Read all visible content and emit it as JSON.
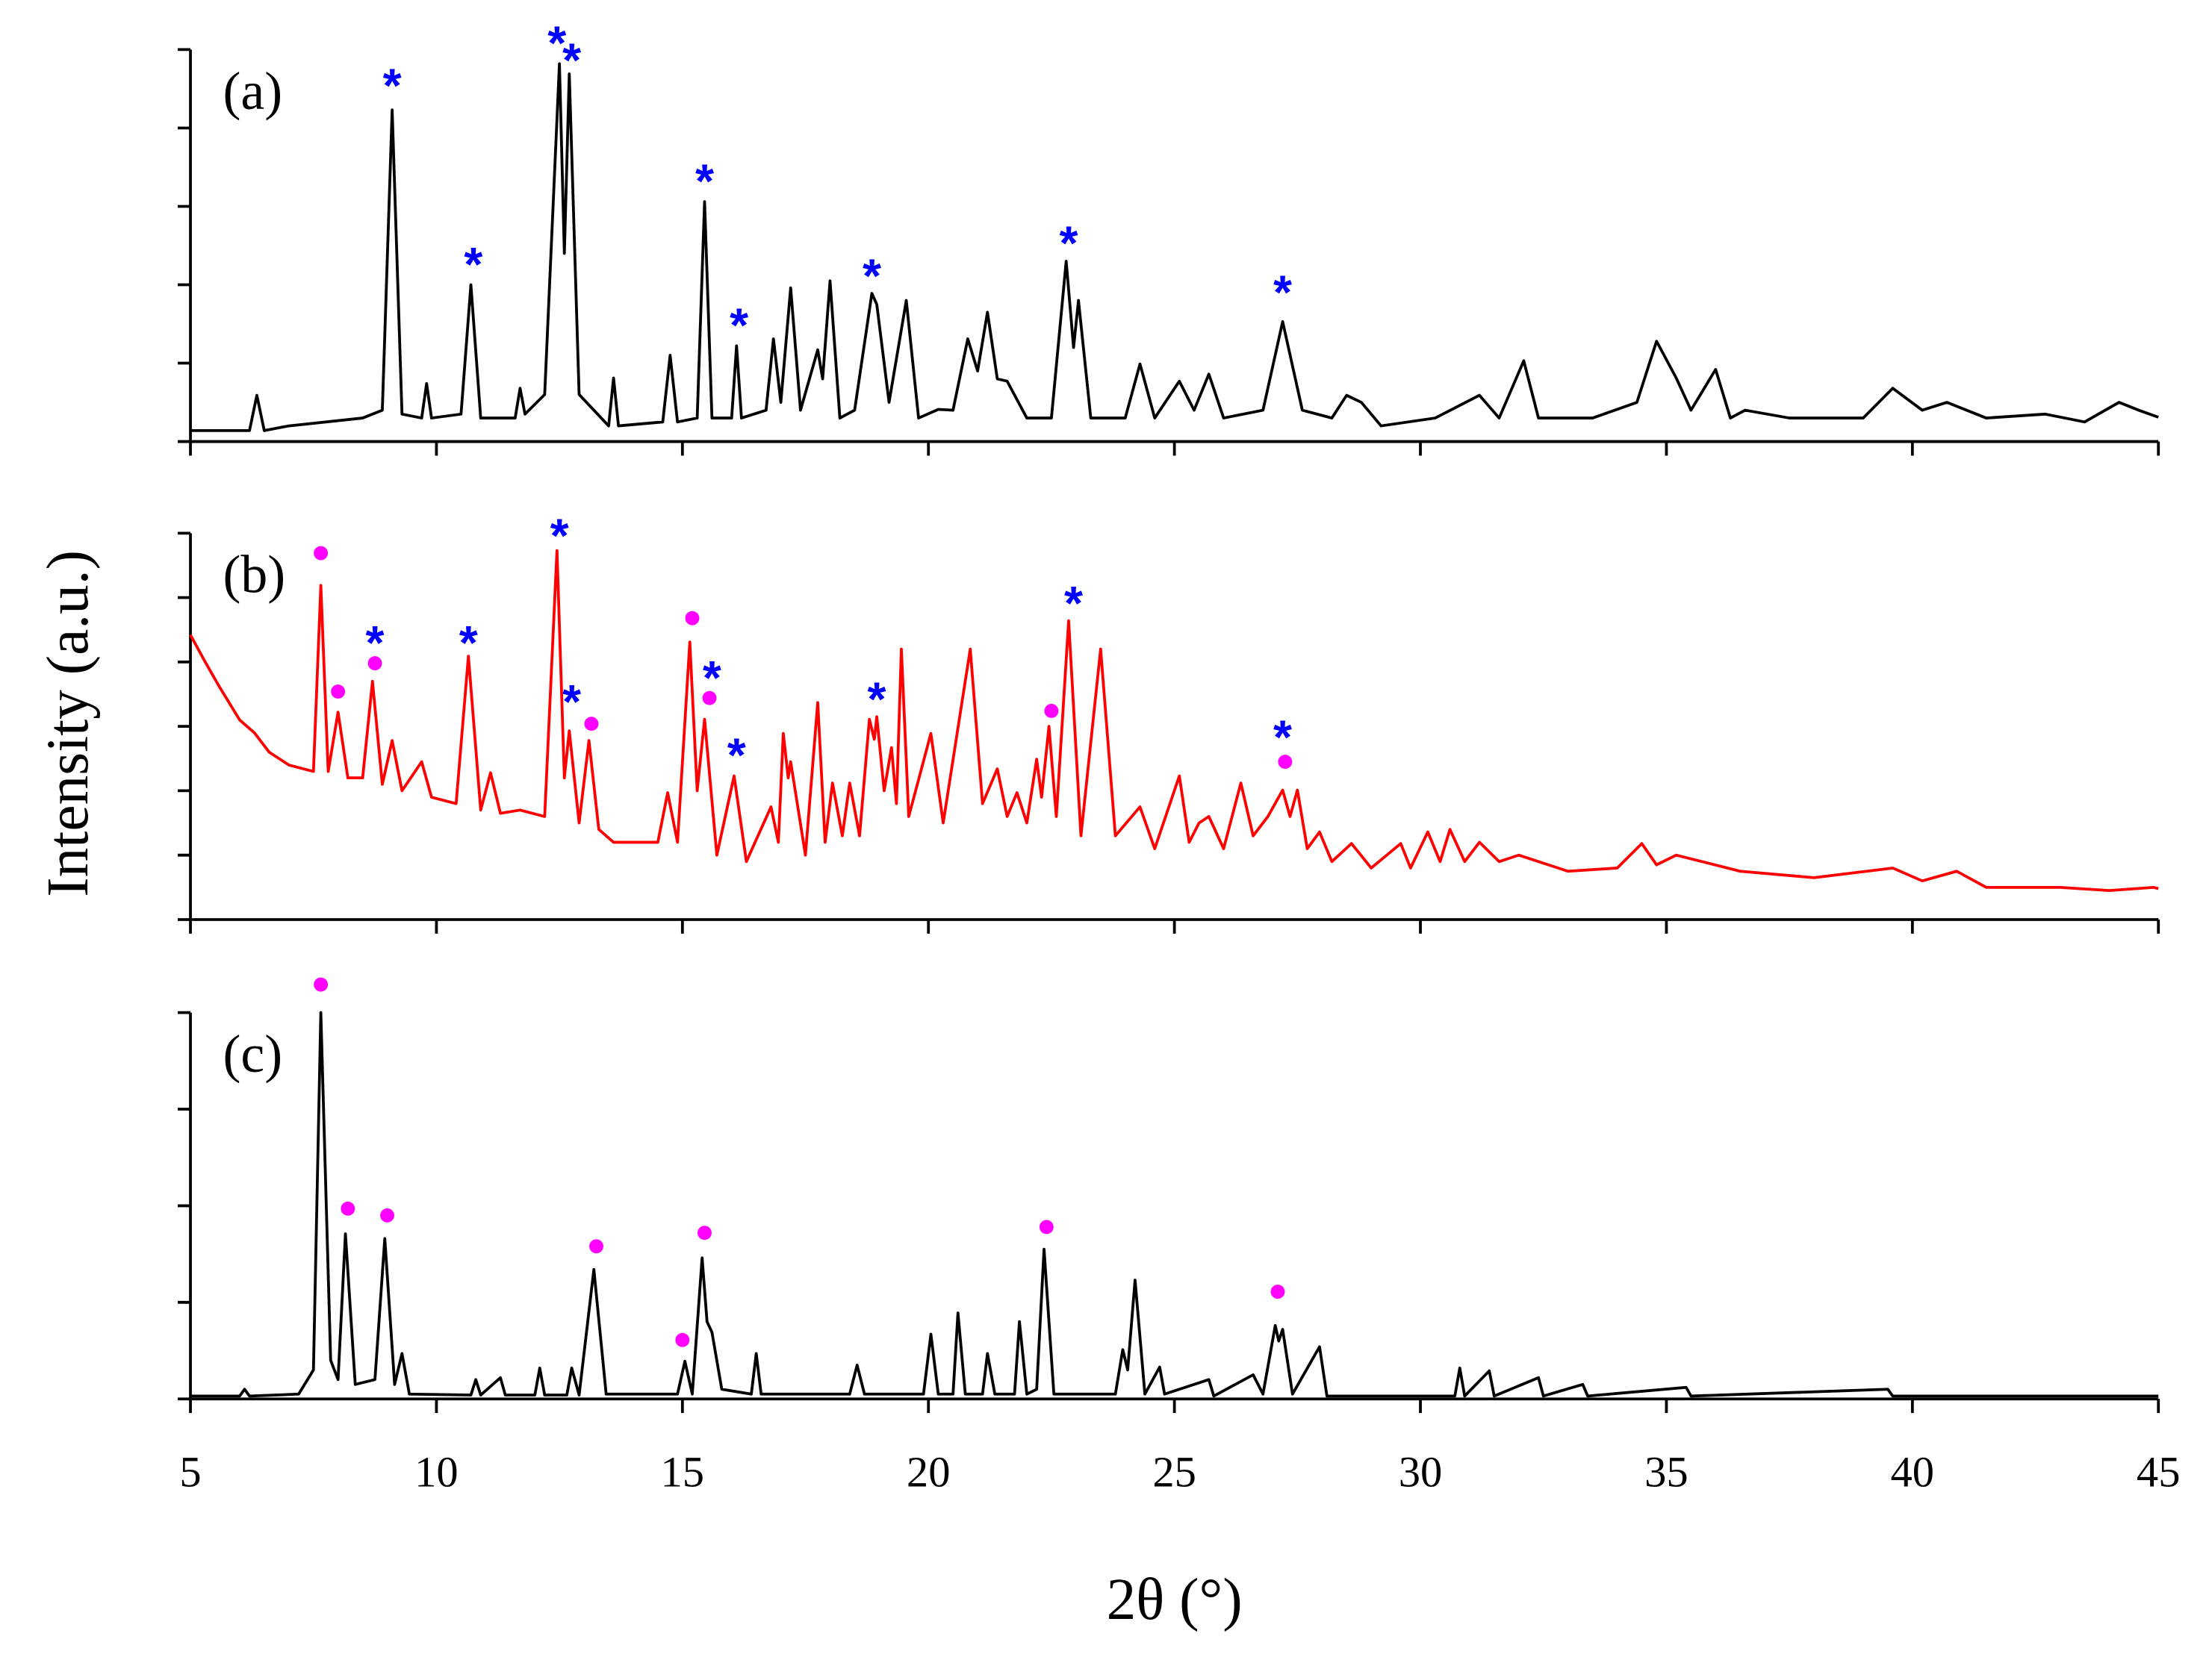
{
  "chart_data": [
    {
      "type": "line",
      "label": "(a)",
      "xlim": [
        5,
        45
      ],
      "ylim": [
        0,
        5
      ],
      "yticks": [
        0,
        1,
        2,
        3,
        4,
        5
      ],
      "x": [
        5.0,
        6.2,
        6.35,
        6.5,
        7.0,
        8.5,
        8.9,
        9.1,
        9.3,
        9.7,
        9.8,
        9.9,
        10.5,
        10.7,
        10.9,
        11.6,
        11.7,
        11.8,
        12.2,
        12.5,
        12.6,
        12.7,
        12.9,
        13.5,
        13.6,
        13.7,
        14.6,
        14.75,
        14.9,
        15.3,
        15.45,
        15.6,
        16.0,
        16.1,
        16.2,
        16.7,
        16.85,
        17.0,
        17.2,
        17.4,
        17.75,
        17.85,
        18.0,
        18.2,
        18.5,
        18.85,
        18.95,
        19.2,
        19.55,
        19.8,
        20.2,
        20.5,
        20.8,
        21.0,
        21.2,
        21.4,
        21.6,
        22.0,
        22.5,
        22.8,
        22.95,
        23.05,
        23.3,
        24.0,
        24.3,
        24.6,
        25.1,
        25.4,
        25.7,
        26.0,
        26.8,
        27.2,
        27.6,
        28.2,
        28.5,
        28.8,
        29.2,
        30.3,
        31.2,
        31.6,
        32.1,
        32.4,
        33.5,
        34.4,
        34.8,
        35.2,
        35.5,
        36.0,
        36.3,
        36.6,
        37.5,
        39.0,
        39.6,
        40.2,
        40.7,
        41.5,
        42.7,
        43.5,
        44.2,
        44.6,
        45.0
      ],
      "series": [
        {
          "color": "#000000",
          "values": [
            0.14,
            0.14,
            0.59,
            0.14,
            0.2,
            0.3,
            0.4,
            4.23,
            0.35,
            0.3,
            0.74,
            0.3,
            0.35,
            2.0,
            0.3,
            0.3,
            0.68,
            0.35,
            0.6,
            4.82,
            2.4,
            4.69,
            0.6,
            0.2,
            0.81,
            0.2,
            0.25,
            1.1,
            0.25,
            0.3,
            3.06,
            0.3,
            0.3,
            1.22,
            0.3,
            0.4,
            1.31,
            0.5,
            1.96,
            0.4,
            1.17,
            0.8,
            2.05,
            0.3,
            0.4,
            1.89,
            1.75,
            0.5,
            1.8,
            0.3,
            0.41,
            0.4,
            1.31,
            0.9,
            1.65,
            0.8,
            0.77,
            0.3,
            0.3,
            2.3,
            1.2,
            1.8,
            0.3,
            0.3,
            0.99,
            0.3,
            0.77,
            0.4,
            0.86,
            0.3,
            0.4,
            1.53,
            0.4,
            0.3,
            0.59,
            0.5,
            0.2,
            0.3,
            0.59,
            0.3,
            1.03,
            0.3,
            0.3,
            0.5,
            1.28,
            0.81,
            0.4,
            0.92,
            0.3,
            0.4,
            0.3,
            0.3,
            0.68,
            0.4,
            0.5,
            0.3,
            0.35,
            0.25,
            0.5,
            0.4,
            0.31
          ]
        }
      ],
      "star_markers": {
        "symbol": "*",
        "color": "#0000ff",
        "x": [
          9.1,
          10.75,
          12.45,
          12.75,
          15.45,
          16.15,
          18.85,
          22.85,
          27.2
        ],
        "y": [
          4.64,
          2.36,
          5.18,
          4.96,
          3.42,
          1.58,
          2.21,
          2.63,
          2.0
        ]
      }
    },
    {
      "type": "line",
      "label": "(b)",
      "ylabel": "Intensity (a.u.)",
      "xlim": [
        5,
        45
      ],
      "ylim": [
        0,
        6
      ],
      "yticks": [
        0,
        1,
        2,
        3,
        4,
        5,
        6
      ],
      "x": [
        5.0,
        5.3,
        5.6,
        6.0,
        6.3,
        6.6,
        7.0,
        7.5,
        7.65,
        7.8,
        8.0,
        8.2,
        8.5,
        8.7,
        8.9,
        9.1,
        9.3,
        9.7,
        9.9,
        10.4,
        10.65,
        10.9,
        11.1,
        11.3,
        11.7,
        12.2,
        12.45,
        12.6,
        12.7,
        12.9,
        13.1,
        13.3,
        13.6,
        14.5,
        14.7,
        14.9,
        15.15,
        15.3,
        15.45,
        15.7,
        16.05,
        16.3,
        16.8,
        16.95,
        17.05,
        17.15,
        17.2,
        17.5,
        17.75,
        17.9,
        18.05,
        18.25,
        18.4,
        18.6,
        18.8,
        18.9,
        18.95,
        19.1,
        19.25,
        19.35,
        19.45,
        19.6,
        20.05,
        20.3,
        20.85,
        21.1,
        21.4,
        21.6,
        21.8,
        22.0,
        22.2,
        22.3,
        22.45,
        22.6,
        22.85,
        23.1,
        23.5,
        23.8,
        24.3,
        24.6,
        25.1,
        25.3,
        25.5,
        25.7,
        26.0,
        26.35,
        26.6,
        26.9,
        27.2,
        27.35,
        27.5,
        27.7,
        27.95,
        28.2,
        28.6,
        29.0,
        29.6,
        29.8,
        30.15,
        30.4,
        30.6,
        30.9,
        31.2,
        31.6,
        32.0,
        33.0,
        34.0,
        34.5,
        34.8,
        35.2,
        36.5,
        38.0,
        39.6,
        40.2,
        40.9,
        41.5,
        43.0,
        44.0,
        44.9,
        45.0
      ],
      "series": [
        {
          "color": "#ff0000",
          "values": [
            4.42,
            4.0,
            3.6,
            3.1,
            2.9,
            2.6,
            2.4,
            2.3,
            5.19,
            2.3,
            3.22,
            2.2,
            2.2,
            3.7,
            2.1,
            2.78,
            2.0,
            2.45,
            1.9,
            1.8,
            4.09,
            1.7,
            2.28,
            1.65,
            1.7,
            1.6,
            5.73,
            2.2,
            2.93,
            1.5,
            2.78,
            1.4,
            1.2,
            1.2,
            1.97,
            1.2,
            4.31,
            2.0,
            3.11,
            1.0,
            2.23,
            0.9,
            1.75,
            1.2,
            2.89,
            2.2,
            2.45,
            1.0,
            3.37,
            1.2,
            2.12,
            1.3,
            2.12,
            1.3,
            3.11,
            2.8,
            3.15,
            2.0,
            2.67,
            1.8,
            4.2,
            1.6,
            2.89,
            1.5,
            4.2,
            1.8,
            2.34,
            1.6,
            1.97,
            1.5,
            2.49,
            1.9,
            3.0,
            1.6,
            4.64,
            1.3,
            4.2,
            1.3,
            1.75,
            1.1,
            2.23,
            1.2,
            1.5,
            1.6,
            1.1,
            2.12,
            1.3,
            1.6,
            2.01,
            1.6,
            2.01,
            1.1,
            1.36,
            0.9,
            1.18,
            0.8,
            1.18,
            0.8,
            1.36,
            0.9,
            1.4,
            0.9,
            1.2,
            0.9,
            1.0,
            0.75,
            0.8,
            1.18,
            0.85,
            1.0,
            0.75,
            0.65,
            0.8,
            0.6,
            0.75,
            0.5,
            0.5,
            0.45,
            0.5,
            0.48
          ]
        }
      ],
      "star_markers": {
        "symbol": "*",
        "color": "#0000ff",
        "x": [
          8.75,
          10.65,
          12.5,
          12.75,
          15.6,
          16.1,
          18.95,
          22.95,
          27.2
        ],
        "y": [
          4.42,
          4.42,
          6.08,
          3.5,
          3.87,
          2.67,
          3.54,
          5.03,
          2.95
        ]
      },
      "dot_markers": {
        "color": "#ff00ff",
        "x": [
          7.65,
          8.0,
          8.75,
          13.15,
          15.2,
          15.55,
          22.5,
          27.25
        ],
        "y": [
          5.69,
          3.54,
          3.98,
          3.04,
          4.68,
          3.44,
          3.24,
          2.45
        ]
      }
    },
    {
      "type": "line",
      "label": "(c)",
      "xlabel": "2θ (°)",
      "xlim": [
        5,
        45
      ],
      "xticks": [
        5,
        10,
        15,
        20,
        25,
        30,
        35,
        40,
        45
      ],
      "ylim": [
        0,
        4
      ],
      "yticks": [
        0,
        1,
        2,
        3,
        4
      ],
      "x": [
        5.0,
        6.0,
        6.1,
        6.2,
        7.2,
        7.5,
        7.65,
        7.85,
        8.0,
        8.15,
        8.35,
        8.75,
        8.95,
        9.15,
        9.3,
        9.45,
        10.7,
        10.8,
        10.9,
        11.3,
        11.4,
        12.0,
        12.1,
        12.2,
        12.65,
        12.75,
        12.9,
        13.2,
        13.45,
        14.9,
        15.05,
        15.2,
        15.4,
        15.5,
        15.6,
        15.8,
        16.4,
        16.5,
        16.6,
        18.4,
        18.55,
        18.7,
        19.9,
        20.05,
        20.2,
        20.5,
        20.6,
        20.75,
        21.1,
        21.2,
        21.35,
        21.75,
        21.85,
        22.0,
        22.2,
        22.35,
        22.55,
        23.8,
        23.95,
        24.05,
        24.2,
        24.4,
        24.7,
        24.8,
        25.7,
        25.8,
        26.6,
        26.8,
        27.05,
        27.12,
        27.2,
        27.4,
        27.95,
        28.1,
        30.7,
        30.8,
        30.9,
        31.4,
        31.5,
        32.4,
        32.5,
        33.3,
        33.4,
        35.4,
        35.5,
        39.5,
        39.6,
        45.0
      ],
      "series": [
        {
          "color": "#000000",
          "values": [
            0.03,
            0.03,
            0.1,
            0.03,
            0.05,
            0.3,
            4.0,
            0.4,
            0.2,
            1.71,
            0.15,
            0.2,
            1.66,
            0.15,
            0.47,
            0.05,
            0.04,
            0.2,
            0.04,
            0.22,
            0.04,
            0.04,
            0.32,
            0.04,
            0.04,
            0.32,
            0.04,
            1.34,
            0.05,
            0.05,
            0.39,
            0.05,
            1.46,
            0.8,
            0.69,
            0.1,
            0.05,
            0.47,
            0.05,
            0.05,
            0.35,
            0.05,
            0.05,
            0.67,
            0.05,
            0.05,
            0.89,
            0.05,
            0.05,
            0.47,
            0.05,
            0.05,
            0.8,
            0.05,
            0.1,
            1.55,
            0.05,
            0.05,
            0.51,
            0.3,
            1.23,
            0.05,
            0.33,
            0.05,
            0.2,
            0.03,
            0.25,
            0.05,
            0.76,
            0.6,
            0.72,
            0.05,
            0.54,
            0.03,
            0.03,
            0.32,
            0.03,
            0.29,
            0.03,
            0.22,
            0.03,
            0.15,
            0.03,
            0.12,
            0.03,
            0.1,
            0.03,
            0.03
          ]
        }
      ],
      "dot_markers": {
        "color": "#ff00ff",
        "x": [
          7.65,
          8.2,
          9.0,
          13.25,
          15.0,
          15.45,
          22.4,
          27.1
        ],
        "y": [
          4.29,
          1.97,
          1.9,
          1.58,
          0.61,
          1.72,
          1.78,
          1.11
        ]
      }
    }
  ]
}
